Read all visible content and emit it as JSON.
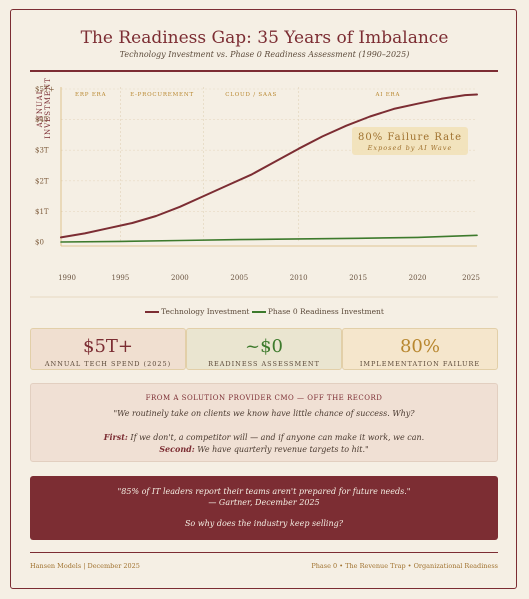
{
  "header": {
    "title": "The Readiness Gap: 35 Years of Imbalance",
    "subtitle": "Technology Investment vs. Phase 0 Readiness Assessment (1990–2025)"
  },
  "chart_data": {
    "type": "line",
    "ylabel": "ANNUAL INVESTMENT",
    "x_ticks": [
      "1990",
      "1995",
      "2000",
      "2005",
      "2010",
      "2015",
      "2020",
      "2025"
    ],
    "y_ticks": [
      "$0",
      "$1T",
      "$2T",
      "$3T",
      "$4T",
      "$5T+"
    ],
    "ylim": [
      0,
      5
    ],
    "xlim": [
      1990,
      2025
    ],
    "eras": [
      {
        "label": "ERP ERA",
        "start": 1990,
        "end": 1995
      },
      {
        "label": "E-PROCUREMENT",
        "start": 1995,
        "end": 2002
      },
      {
        "label": "CLOUD / SAAS",
        "start": 2002,
        "end": 2010
      },
      {
        "label": "AI ERA",
        "start": 2010,
        "end": 2025
      }
    ],
    "annotation": {
      "title": "80% Failure Rate",
      "subtitle": "Exposed by AI Wave"
    },
    "series": [
      {
        "name": "Technology Investment",
        "color": "#7c2d33",
        "x": [
          1990,
          1992,
          1994,
          1996,
          1998,
          2000,
          2002,
          2004,
          2006,
          2008,
          2010,
          2012,
          2014,
          2016,
          2018,
          2020,
          2022,
          2024,
          2025
        ],
        "values": [
          0.15,
          0.28,
          0.45,
          0.62,
          0.85,
          1.15,
          1.5,
          1.85,
          2.2,
          2.62,
          3.05,
          3.45,
          3.8,
          4.1,
          4.35,
          4.52,
          4.68,
          4.8,
          4.82
        ]
      },
      {
        "name": "Phase 0 Readiness Investment",
        "color": "#3d7a2c",
        "x": [
          1990,
          1995,
          2000,
          2005,
          2010,
          2015,
          2020,
          2025
        ],
        "values": [
          0.0,
          0.02,
          0.05,
          0.08,
          0.1,
          0.12,
          0.15,
          0.22
        ]
      }
    ]
  },
  "stats": [
    {
      "value": "$5T+",
      "label": "ANNUAL TECH SPEND (2025)",
      "color": "#7c2d33",
      "bg": "#f0dfd0"
    },
    {
      "value": "~$0",
      "label": "READINESS ASSESSMENT",
      "color": "#3d7a2c",
      "bg": "#eae5d0"
    },
    {
      "value": "80%",
      "label": "IMPLEMENTATION FAILURE",
      "color": "#b8872f",
      "bg": "#f5e6cc"
    }
  ],
  "quote": {
    "heading": "FROM A SOLUTION PROVIDER CMO — OFF THE RECORD",
    "line1": "\"We routinely take on clients we know have little chance of success. Why?",
    "first_label": "First:",
    "first_text": " If we don't, a competitor will — and if anyone can make it work, we can.",
    "second_label": "Second:",
    "second_text": " We have quarterly revenue targets to hit.\""
  },
  "callout": {
    "line1": "\"85% of IT leaders report their teams aren't prepared for future needs.\"",
    "line2": "— Gartner, December 2025",
    "line3": "So why does the industry keep selling?"
  },
  "footer": {
    "left": "Hansen Models | December 2025",
    "right": "Phase 0 • The Revenue Trap • Organizational Readiness"
  }
}
